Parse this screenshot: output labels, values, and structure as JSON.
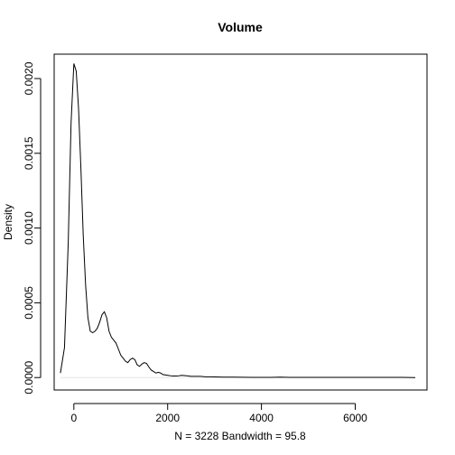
{
  "chart_data": {
    "type": "line",
    "title": "Volume",
    "xlabel": "N = 3228   Bandwidth = 95.8",
    "ylabel": "Density",
    "xlim": [
      -420,
      7530
    ],
    "ylim": [
      -8.32e-05,
      0.002163
    ],
    "x_ticks": [
      0,
      2000,
      4000,
      6000
    ],
    "x_tick_labels": [
      "0",
      "2000",
      "4000",
      "6000"
    ],
    "y_ticks": [
      0.0,
      0.0005,
      0.001,
      0.0015,
      0.002
    ],
    "y_tick_labels": [
      "0.0000",
      "0.0005",
      "0.0010",
      "0.0015",
      "0.0020"
    ],
    "grid": false,
    "legend": "none",
    "colors": {
      "line": "#000000",
      "baseline": "#e6e6e6",
      "frame": "#000000"
    },
    "series": [
      {
        "x": [
          -287,
          -200,
          -120,
          -60,
          0,
          50,
          100,
          150,
          200,
          250,
          300,
          350,
          400,
          450,
          500,
          550,
          600,
          650,
          700,
          750,
          800,
          850,
          900,
          950,
          1000,
          1050,
          1100,
          1150,
          1200,
          1250,
          1300,
          1350,
          1400,
          1450,
          1500,
          1550,
          1600,
          1650,
          1700,
          1750,
          1800,
          1850,
          1900,
          2000,
          2100,
          2200,
          2300,
          2400,
          2500,
          2600,
          2700,
          2800,
          2900,
          3000,
          3200,
          3400,
          3600,
          3800,
          4000,
          4200,
          4400,
          4600,
          4800,
          5000,
          5500,
          6000,
          6500,
          7000,
          7280
        ],
        "y": [
          3e-05,
          0.0002,
          0.0009,
          0.0017,
          0.0021,
          0.00205,
          0.0018,
          0.0014,
          0.00095,
          0.00062,
          0.0004,
          0.00031,
          0.0003,
          0.00031,
          0.00033,
          0.00037,
          0.00042,
          0.00044,
          0.0004,
          0.00031,
          0.00027,
          0.00025,
          0.00023,
          0.00019,
          0.00015,
          0.00013,
          0.00011,
          0.0001,
          0.00012,
          0.00013,
          0.00012,
          8.5e-05,
          7.5e-05,
          9e-05,
          0.0001,
          9.5e-05,
          7e-05,
          5e-05,
          4e-05,
          3e-05,
          3.5e-05,
          3e-05,
          2e-05,
          1.5e-05,
          1e-05,
          1e-05,
          1.5e-05,
          1.2e-05,
          8e-06,
          8e-06,
          8e-06,
          5e-06,
          5e-06,
          4e-06,
          3e-06,
          3e-06,
          2e-06,
          1e-06,
          1e-06,
          1e-06,
          3e-06,
          1e-06,
          1e-06,
          1e-06,
          1e-06,
          1e-06,
          1e-06,
          1e-06,
          0
        ]
      }
    ]
  }
}
